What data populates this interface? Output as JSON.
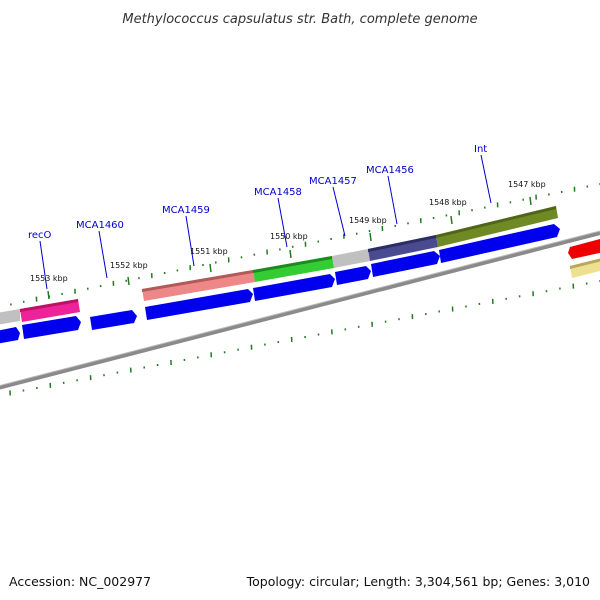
{
  "header": {
    "title": "Methylococcus capsulatus str. Bath, complete genome"
  },
  "footer": {
    "accession": "Accession: NC_002977",
    "summary": "Topology: circular; Length: 3,304,561 bp; Genes: 3,010"
  },
  "scale_labels": [
    "1553 kbp",
    "1552 kbp",
    "1551 kbp",
    "1550 kbp",
    "1549 kbp",
    "1548 kbp",
    "1547 kbp"
  ],
  "gene_labels": [
    "recO",
    "MCA1460",
    "MCA1459",
    "MCA1458",
    "MCA1457",
    "MCA1456",
    "Int"
  ],
  "colors": {
    "backbone": "#8a8a8a",
    "cds": "#0000ee",
    "tick": "#1f7a1f",
    "label": "#0000cc",
    "pink": "#ee2299",
    "salmon": "#ee8888",
    "green": "#33cc33",
    "gray": "#c0c0c0",
    "indigo": "#4a4a90",
    "olive": "#6f8a25",
    "red": "#ee0000",
    "khaki": "#eee090"
  }
}
